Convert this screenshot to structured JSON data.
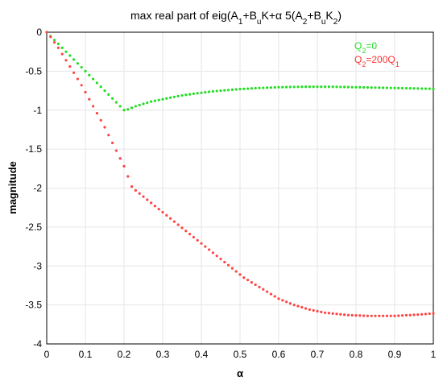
{
  "chart_data": {
    "type": "scatter",
    "title": "max real part of eig(A1+BuK+α 5(A2+BuK2)",
    "xlabel": "α",
    "ylabel": "magnitude",
    "xlim": [
      0,
      1
    ],
    "ylim": [
      -4,
      0
    ],
    "xticks": [
      "0",
      "0.1",
      "0.2",
      "0.3",
      "0.4",
      "0.5",
      "0.6",
      "0.7",
      "0.8",
      "0.9",
      "1"
    ],
    "yticks": [
      "0",
      "-0.5",
      "-1",
      "-1.5",
      "-2",
      "-2.5",
      "-3",
      "-3.5",
      "-4"
    ],
    "grid": true,
    "legend_position": "top-right",
    "legend": [
      "Q2=0",
      "Q2=200Q1"
    ],
    "series": [
      {
        "name": "Q2=0",
        "color": "#22dd22",
        "x": [
          0.0,
          0.01,
          0.02,
          0.03,
          0.04,
          0.05,
          0.06,
          0.07,
          0.08,
          0.09,
          0.1,
          0.11,
          0.12,
          0.13,
          0.14,
          0.15,
          0.16,
          0.17,
          0.18,
          0.19,
          0.2,
          0.21,
          0.22,
          0.23,
          0.24,
          0.25,
          0.26,
          0.27,
          0.28,
          0.29,
          0.3,
          0.31,
          0.32,
          0.33,
          0.34,
          0.35,
          0.36,
          0.37,
          0.38,
          0.39,
          0.4,
          0.41,
          0.42,
          0.43,
          0.44,
          0.45,
          0.46,
          0.47,
          0.48,
          0.49,
          0.5,
          0.51,
          0.52,
          0.53,
          0.54,
          0.55,
          0.56,
          0.57,
          0.58,
          0.59,
          0.6,
          0.61,
          0.62,
          0.63,
          0.64,
          0.65,
          0.66,
          0.67,
          0.68,
          0.69,
          0.7,
          0.71,
          0.72,
          0.73,
          0.74,
          0.75,
          0.76,
          0.77,
          0.78,
          0.79,
          0.8,
          0.81,
          0.82,
          0.83,
          0.84,
          0.85,
          0.86,
          0.87,
          0.88,
          0.89,
          0.9,
          0.91,
          0.92,
          0.93,
          0.94,
          0.95,
          0.96,
          0.97,
          0.98,
          0.99,
          1.0
        ],
        "y": [
          0.0,
          -0.05,
          -0.1,
          -0.15,
          -0.2,
          -0.25,
          -0.3,
          -0.35,
          -0.4,
          -0.45,
          -0.5,
          -0.55,
          -0.6,
          -0.65,
          -0.7,
          -0.75,
          -0.8,
          -0.85,
          -0.9,
          -0.95,
          -1.0,
          -0.99,
          -0.97,
          -0.95,
          -0.935,
          -0.92,
          -0.905,
          -0.89,
          -0.88,
          -0.87,
          -0.86,
          -0.85,
          -0.84,
          -0.83,
          -0.82,
          -0.812,
          -0.804,
          -0.797,
          -0.79,
          -0.783,
          -0.777,
          -0.771,
          -0.765,
          -0.76,
          -0.755,
          -0.75,
          -0.746,
          -0.742,
          -0.738,
          -0.734,
          -0.73,
          -0.727,
          -0.724,
          -0.721,
          -0.718,
          -0.716,
          -0.714,
          -0.712,
          -0.71,
          -0.708,
          -0.706,
          -0.705,
          -0.704,
          -0.703,
          -0.702,
          -0.701,
          -0.7,
          -0.7,
          -0.7,
          -0.7,
          -0.7,
          -0.7,
          -0.7,
          -0.7,
          -0.7,
          -0.701,
          -0.702,
          -0.703,
          -0.704,
          -0.705,
          -0.706,
          -0.707,
          -0.708,
          -0.709,
          -0.71,
          -0.711,
          -0.712,
          -0.713,
          -0.714,
          -0.715,
          -0.716,
          -0.717,
          -0.718,
          -0.719,
          -0.72,
          -0.721,
          -0.722,
          -0.723,
          -0.724,
          -0.725,
          -0.73
        ]
      },
      {
        "name": "Q2=200Q1",
        "color": "#ff4444",
        "x": [
          0.0,
          0.01,
          0.02,
          0.03,
          0.04,
          0.05,
          0.06,
          0.07,
          0.08,
          0.09,
          0.1,
          0.11,
          0.12,
          0.13,
          0.14,
          0.15,
          0.16,
          0.17,
          0.18,
          0.19,
          0.2,
          0.21,
          0.22,
          0.23,
          0.24,
          0.25,
          0.26,
          0.27,
          0.28,
          0.29,
          0.3,
          0.31,
          0.32,
          0.33,
          0.34,
          0.35,
          0.36,
          0.37,
          0.38,
          0.39,
          0.4,
          0.41,
          0.42,
          0.43,
          0.44,
          0.45,
          0.46,
          0.47,
          0.48,
          0.49,
          0.5,
          0.51,
          0.52,
          0.53,
          0.54,
          0.55,
          0.56,
          0.57,
          0.58,
          0.59,
          0.6,
          0.61,
          0.62,
          0.63,
          0.64,
          0.65,
          0.66,
          0.67,
          0.68,
          0.69,
          0.7,
          0.71,
          0.72,
          0.73,
          0.74,
          0.75,
          0.76,
          0.77,
          0.78,
          0.79,
          0.8,
          0.81,
          0.82,
          0.83,
          0.84,
          0.85,
          0.86,
          0.87,
          0.88,
          0.89,
          0.9,
          0.91,
          0.92,
          0.93,
          0.94,
          0.95,
          0.96,
          0.97,
          0.98,
          0.99,
          1.0
        ],
        "y": [
          0.0,
          -0.06,
          -0.13,
          -0.2,
          -0.28,
          -0.36,
          -0.44,
          -0.52,
          -0.6,
          -0.68,
          -0.77,
          -0.86,
          -0.95,
          -1.04,
          -1.13,
          -1.22,
          -1.32,
          -1.42,
          -1.52,
          -1.62,
          -1.72,
          -1.85,
          -1.98,
          -2.03,
          -2.07,
          -2.11,
          -2.15,
          -2.19,
          -2.23,
          -2.27,
          -2.31,
          -2.35,
          -2.39,
          -2.43,
          -2.47,
          -2.51,
          -2.55,
          -2.59,
          -2.63,
          -2.67,
          -2.71,
          -2.75,
          -2.79,
          -2.83,
          -2.87,
          -2.91,
          -2.95,
          -2.99,
          -3.03,
          -3.07,
          -3.11,
          -3.15,
          -3.18,
          -3.21,
          -3.24,
          -3.27,
          -3.3,
          -3.33,
          -3.36,
          -3.39,
          -3.42,
          -3.44,
          -3.46,
          -3.48,
          -3.5,
          -3.515,
          -3.53,
          -3.545,
          -3.56,
          -3.57,
          -3.58,
          -3.59,
          -3.6,
          -3.605,
          -3.61,
          -3.615,
          -3.62,
          -3.625,
          -3.63,
          -3.632,
          -3.634,
          -3.636,
          -3.638,
          -3.64,
          -3.64,
          -3.64,
          -3.64,
          -3.64,
          -3.64,
          -3.64,
          -3.64,
          -3.638,
          -3.635,
          -3.632,
          -3.63,
          -3.627,
          -3.624,
          -3.62,
          -3.616,
          -3.612,
          -3.61
        ]
      }
    ]
  }
}
